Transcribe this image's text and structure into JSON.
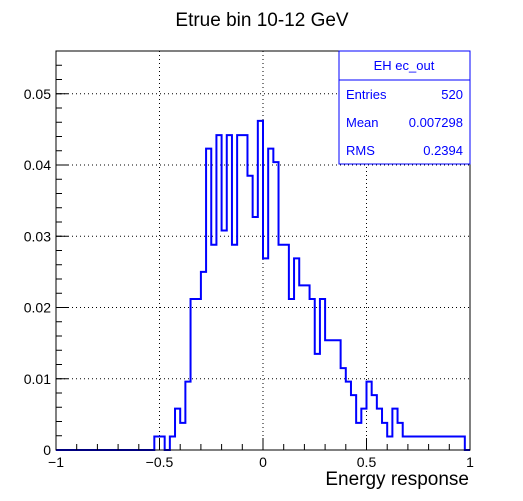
{
  "chart_data": {
    "type": "histogram",
    "title": "Etrue bin 10-12 GeV",
    "xlabel": "Energy response",
    "ylabel": "",
    "xlim": [
      -1,
      1
    ],
    "ylim": [
      0,
      0.056
    ],
    "grid": true,
    "line_color": "#0000ff",
    "bin_width": 0.025,
    "bins": [
      {
        "x": -0.525,
        "y": 0.0019
      },
      {
        "x": -0.5,
        "y": 0.0019
      },
      {
        "x": -0.45,
        "y": 0.0019
      },
      {
        "x": -0.425,
        "y": 0.0058
      },
      {
        "x": -0.4,
        "y": 0.0038
      },
      {
        "x": -0.375,
        "y": 0.0096
      },
      {
        "x": -0.35,
        "y": 0.0212
      },
      {
        "x": -0.325,
        "y": 0.0212
      },
      {
        "x": -0.3,
        "y": 0.025
      },
      {
        "x": -0.275,
        "y": 0.0423
      },
      {
        "x": -0.25,
        "y": 0.0288
      },
      {
        "x": -0.225,
        "y": 0.0442
      },
      {
        "x": -0.2,
        "y": 0.0308
      },
      {
        "x": -0.175,
        "y": 0.0442
      },
      {
        "x": -0.15,
        "y": 0.0288
      },
      {
        "x": -0.125,
        "y": 0.0442
      },
      {
        "x": -0.1,
        "y": 0.0442
      },
      {
        "x": -0.075,
        "y": 0.0385
      },
      {
        "x": -0.05,
        "y": 0.0327
      },
      {
        "x": -0.025,
        "y": 0.0462
      },
      {
        "x": 0.0,
        "y": 0.0269
      },
      {
        "x": 0.025,
        "y": 0.0423
      },
      {
        "x": 0.05,
        "y": 0.0404
      },
      {
        "x": 0.075,
        "y": 0.0288
      },
      {
        "x": 0.1,
        "y": 0.0288
      },
      {
        "x": 0.125,
        "y": 0.0212
      },
      {
        "x": 0.15,
        "y": 0.0269
      },
      {
        "x": 0.175,
        "y": 0.0231
      },
      {
        "x": 0.2,
        "y": 0.0231
      },
      {
        "x": 0.225,
        "y": 0.0212
      },
      {
        "x": 0.25,
        "y": 0.0135
      },
      {
        "x": 0.275,
        "y": 0.0212
      },
      {
        "x": 0.3,
        "y": 0.0154
      },
      {
        "x": 0.325,
        "y": 0.0154
      },
      {
        "x": 0.35,
        "y": 0.0154
      },
      {
        "x": 0.375,
        "y": 0.0115
      },
      {
        "x": 0.4,
        "y": 0.0096
      },
      {
        "x": 0.425,
        "y": 0.0077
      },
      {
        "x": 0.45,
        "y": 0.0038
      },
      {
        "x": 0.475,
        "y": 0.0058
      },
      {
        "x": 0.5,
        "y": 0.0096
      },
      {
        "x": 0.525,
        "y": 0.0077
      },
      {
        "x": 0.55,
        "y": 0.0058
      },
      {
        "x": 0.575,
        "y": 0.0038
      },
      {
        "x": 0.6,
        "y": 0.0019
      },
      {
        "x": 0.625,
        "y": 0.0058
      },
      {
        "x": 0.65,
        "y": 0.0038
      },
      {
        "x": 0.675,
        "y": 0.0019
      },
      {
        "x": 0.7,
        "y": 0.0019
      },
      {
        "x": 0.725,
        "y": 0.0019
      },
      {
        "x": 0.75,
        "y": 0.0019
      },
      {
        "x": 0.775,
        "y": 0.0019
      },
      {
        "x": 0.8,
        "y": 0.0019
      },
      {
        "x": 0.825,
        "y": 0.0019
      },
      {
        "x": 0.85,
        "y": 0.0019
      },
      {
        "x": 0.875,
        "y": 0.0019
      },
      {
        "x": 0.9,
        "y": 0.0019
      },
      {
        "x": 0.925,
        "y": 0.0019
      },
      {
        "x": 0.95,
        "y": 0.0019
      }
    ],
    "x_ticks": [
      {
        "value": -1,
        "label": "−1"
      },
      {
        "value": -0.5,
        "label": "−0.5"
      },
      {
        "value": 0,
        "label": "0"
      },
      {
        "value": 0.5,
        "label": "0.5"
      },
      {
        "value": 1,
        "label": "1"
      }
    ],
    "y_ticks": [
      {
        "value": 0,
        "label": "0"
      },
      {
        "value": 0.01,
        "label": "0.01"
      },
      {
        "value": 0.02,
        "label": "0.02"
      },
      {
        "value": 0.03,
        "label": "0.03"
      },
      {
        "value": 0.04,
        "label": "0.04"
      },
      {
        "value": 0.05,
        "label": "0.05"
      }
    ],
    "stats_box": {
      "name": "EH ec_out",
      "rows": [
        {
          "label": "Entries",
          "value": "520"
        },
        {
          "label": "Mean",
          "value": "0.007298"
        },
        {
          "label": "RMS",
          "value": "0.2394"
        }
      ]
    }
  }
}
